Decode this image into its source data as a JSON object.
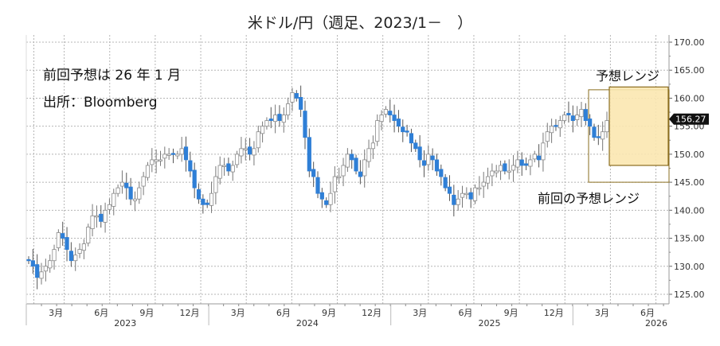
{
  "title": "米ドル/円（週足、2023/1－　）",
  "notes": {
    "line1": "前回予想は 26 年 1 月",
    "line2": "出所：Bloomberg"
  },
  "annotations": {
    "forecast_range": "予想レンジ",
    "previous_forecast_range": "前回の予想レンジ"
  },
  "last_price_label": "156.27",
  "colors": {
    "up_fill": "#ffffff",
    "up_edge": "#8a8a8a",
    "down_fill": "#2f7fd6",
    "forecast_fill": "#fbe7b0",
    "forecast_edge": "#8a6d1f",
    "grid": "#b5b5b5"
  },
  "chart_data": {
    "type": "candlestick",
    "title": "米ドル/円（週足、2023/1－　）",
    "xlabel": "",
    "ylabel": "",
    "ylim": [
      123,
      171
    ],
    "yticks": [
      125,
      130,
      135,
      140,
      145,
      150,
      155,
      160,
      165,
      170
    ],
    "ytick_labels": [
      "125.00",
      "130.00",
      "135.00",
      "140.00",
      "145.00",
      "150.00",
      "155.00",
      "160.00",
      "165.00",
      "170.00"
    ],
    "xtick_labels": [
      "3月",
      "6月",
      "9月",
      "12月",
      "3月",
      "6月",
      "9月",
      "12月",
      "3月",
      "6月",
      "9月",
      "12月",
      "3月",
      "6月"
    ],
    "year_labels": [
      "2023",
      "2024",
      "2025",
      "2026"
    ],
    "grid": true,
    "last_price": 156.27,
    "forecast_range": {
      "label": "予想レンジ",
      "from": "2026-02",
      "to": "2026-07",
      "low": 148,
      "high": 162
    },
    "previous_forecast_range": {
      "label": "前回の予想レンジ",
      "from": "2026-01",
      "to": "2026-07",
      "low": 145,
      "high": 161.5
    },
    "close_path": [
      131,
      130,
      128,
      129,
      130,
      131,
      133,
      136,
      135,
      133,
      131,
      132,
      133,
      134,
      137,
      139,
      139,
      138,
      140,
      141,
      143,
      144,
      145,
      144,
      142,
      142,
      144,
      146,
      148,
      149,
      149,
      149,
      150,
      150,
      150,
      150,
      151,
      149,
      147,
      144,
      142,
      141,
      141,
      143,
      146,
      148,
      148,
      147,
      148,
      150,
      151,
      151,
      150,
      151,
      154,
      155,
      156,
      156,
      157,
      156,
      157,
      159,
      161,
      160,
      158,
      153,
      147,
      146,
      143,
      142,
      141,
      143,
      146,
      146,
      148,
      150,
      149,
      147,
      146,
      149,
      151,
      152,
      156,
      157,
      158,
      157,
      156,
      155,
      154,
      154,
      152,
      151,
      149,
      148,
      150,
      149,
      147,
      146,
      144,
      143,
      141,
      142,
      143,
      143,
      142,
      144,
      144,
      145,
      146,
      147,
      147,
      148,
      147,
      147,
      148,
      149,
      148,
      148,
      149,
      150,
      149,
      152,
      154,
      155,
      155,
      156,
      157,
      157,
      156,
      157,
      158,
      156,
      155,
      153,
      153,
      154,
      156
    ]
  }
}
